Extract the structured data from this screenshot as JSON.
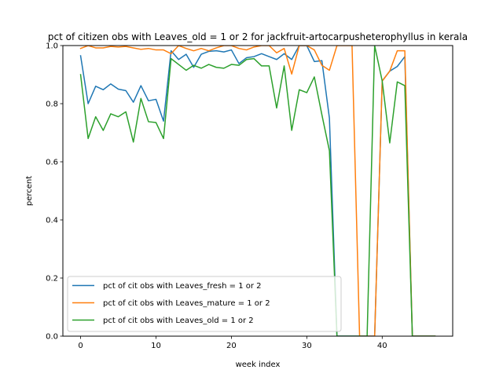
{
  "chart_data": {
    "type": "line",
    "title": "pct of citizen obs with Leaves_old = 1 or 2 for jackfruit-artocarpusheterophyllus in kerala",
    "xlabel": "week index",
    "ylabel": "percent",
    "xlim": [
      -2.35,
      49.35
    ],
    "ylim": [
      0,
      1.0
    ],
    "x_ticks": [
      0,
      10,
      20,
      30,
      40
    ],
    "y_ticks": [
      0.0,
      0.2,
      0.4,
      0.6,
      0.8,
      1.0
    ],
    "x_tick_labels": [
      "0",
      "10",
      "20",
      "30",
      "40"
    ],
    "y_tick_labels": [
      "0.0",
      "0.2",
      "0.4",
      "0.6",
      "0.8",
      "1.0"
    ],
    "grid": false,
    "legend_position": "lower-left",
    "x": [
      0,
      1,
      2,
      3,
      4,
      5,
      6,
      7,
      8,
      9,
      10,
      11,
      12,
      13,
      14,
      15,
      16,
      17,
      18,
      19,
      20,
      21,
      22,
      23,
      24,
      25,
      26,
      27,
      28,
      29,
      30,
      31,
      32,
      33,
      34,
      35,
      36,
      37,
      38,
      39,
      40,
      41,
      42,
      43,
      44,
      45,
      46,
      47
    ],
    "series": [
      {
        "name": "pct of cit obs with Leaves_fresh = 1 or 2",
        "color": "#1f77b4",
        "values": [
          0.965,
          0.8,
          0.86,
          0.848,
          0.868,
          0.85,
          0.845,
          0.805,
          0.862,
          0.81,
          0.815,
          0.74,
          0.982,
          0.952,
          0.97,
          0.925,
          0.97,
          0.98,
          0.982,
          0.978,
          0.985,
          0.938,
          0.958,
          0.962,
          0.972,
          0.962,
          0.952,
          0.972,
          0.952,
          1.0,
          1.0,
          0.945,
          0.948,
          0.75,
          0.0,
          0.0,
          0.0,
          0.0,
          0.0,
          0.0,
          0.878,
          0.912,
          0.928,
          0.962,
          0.0,
          0.0,
          0.0,
          0.0
        ]
      },
      {
        "name": "pct of cit obs with Leaves_mature = 1 or 2",
        "color": "#ff7f0e",
        "values": [
          0.99,
          1.0,
          0.992,
          0.992,
          0.997,
          0.995,
          0.997,
          0.992,
          0.987,
          0.99,
          0.985,
          0.985,
          0.972,
          1.0,
          0.99,
          0.982,
          0.99,
          0.982,
          0.992,
          1.0,
          1.0,
          0.99,
          0.985,
          0.995,
          1.0,
          1.0,
          0.975,
          0.99,
          0.902,
          1.0,
          1.0,
          0.985,
          0.932,
          0.915,
          1.0,
          1.0,
          1.0,
          0.0,
          0.0,
          0.0,
          0.878,
          0.912,
          0.982,
          0.982,
          0.0,
          0.0,
          0.0,
          0.0
        ]
      },
      {
        "name": "pct of cit obs with Leaves_old = 1 or 2",
        "color": "#2ca02c",
        "values": [
          0.9,
          0.68,
          0.755,
          0.708,
          0.765,
          0.755,
          0.772,
          0.668,
          0.818,
          0.738,
          0.735,
          0.68,
          0.955,
          0.935,
          0.915,
          0.932,
          0.922,
          0.935,
          0.925,
          0.922,
          0.935,
          0.932,
          0.952,
          0.955,
          0.93,
          0.93,
          0.785,
          0.93,
          0.708,
          0.848,
          0.838,
          0.892,
          0.762,
          0.638,
          0.0,
          0.0,
          0.0,
          0.0,
          0.0,
          1.0,
          0.878,
          0.665,
          0.875,
          0.862,
          0.0,
          0.0,
          0.0,
          0.0
        ]
      }
    ]
  }
}
